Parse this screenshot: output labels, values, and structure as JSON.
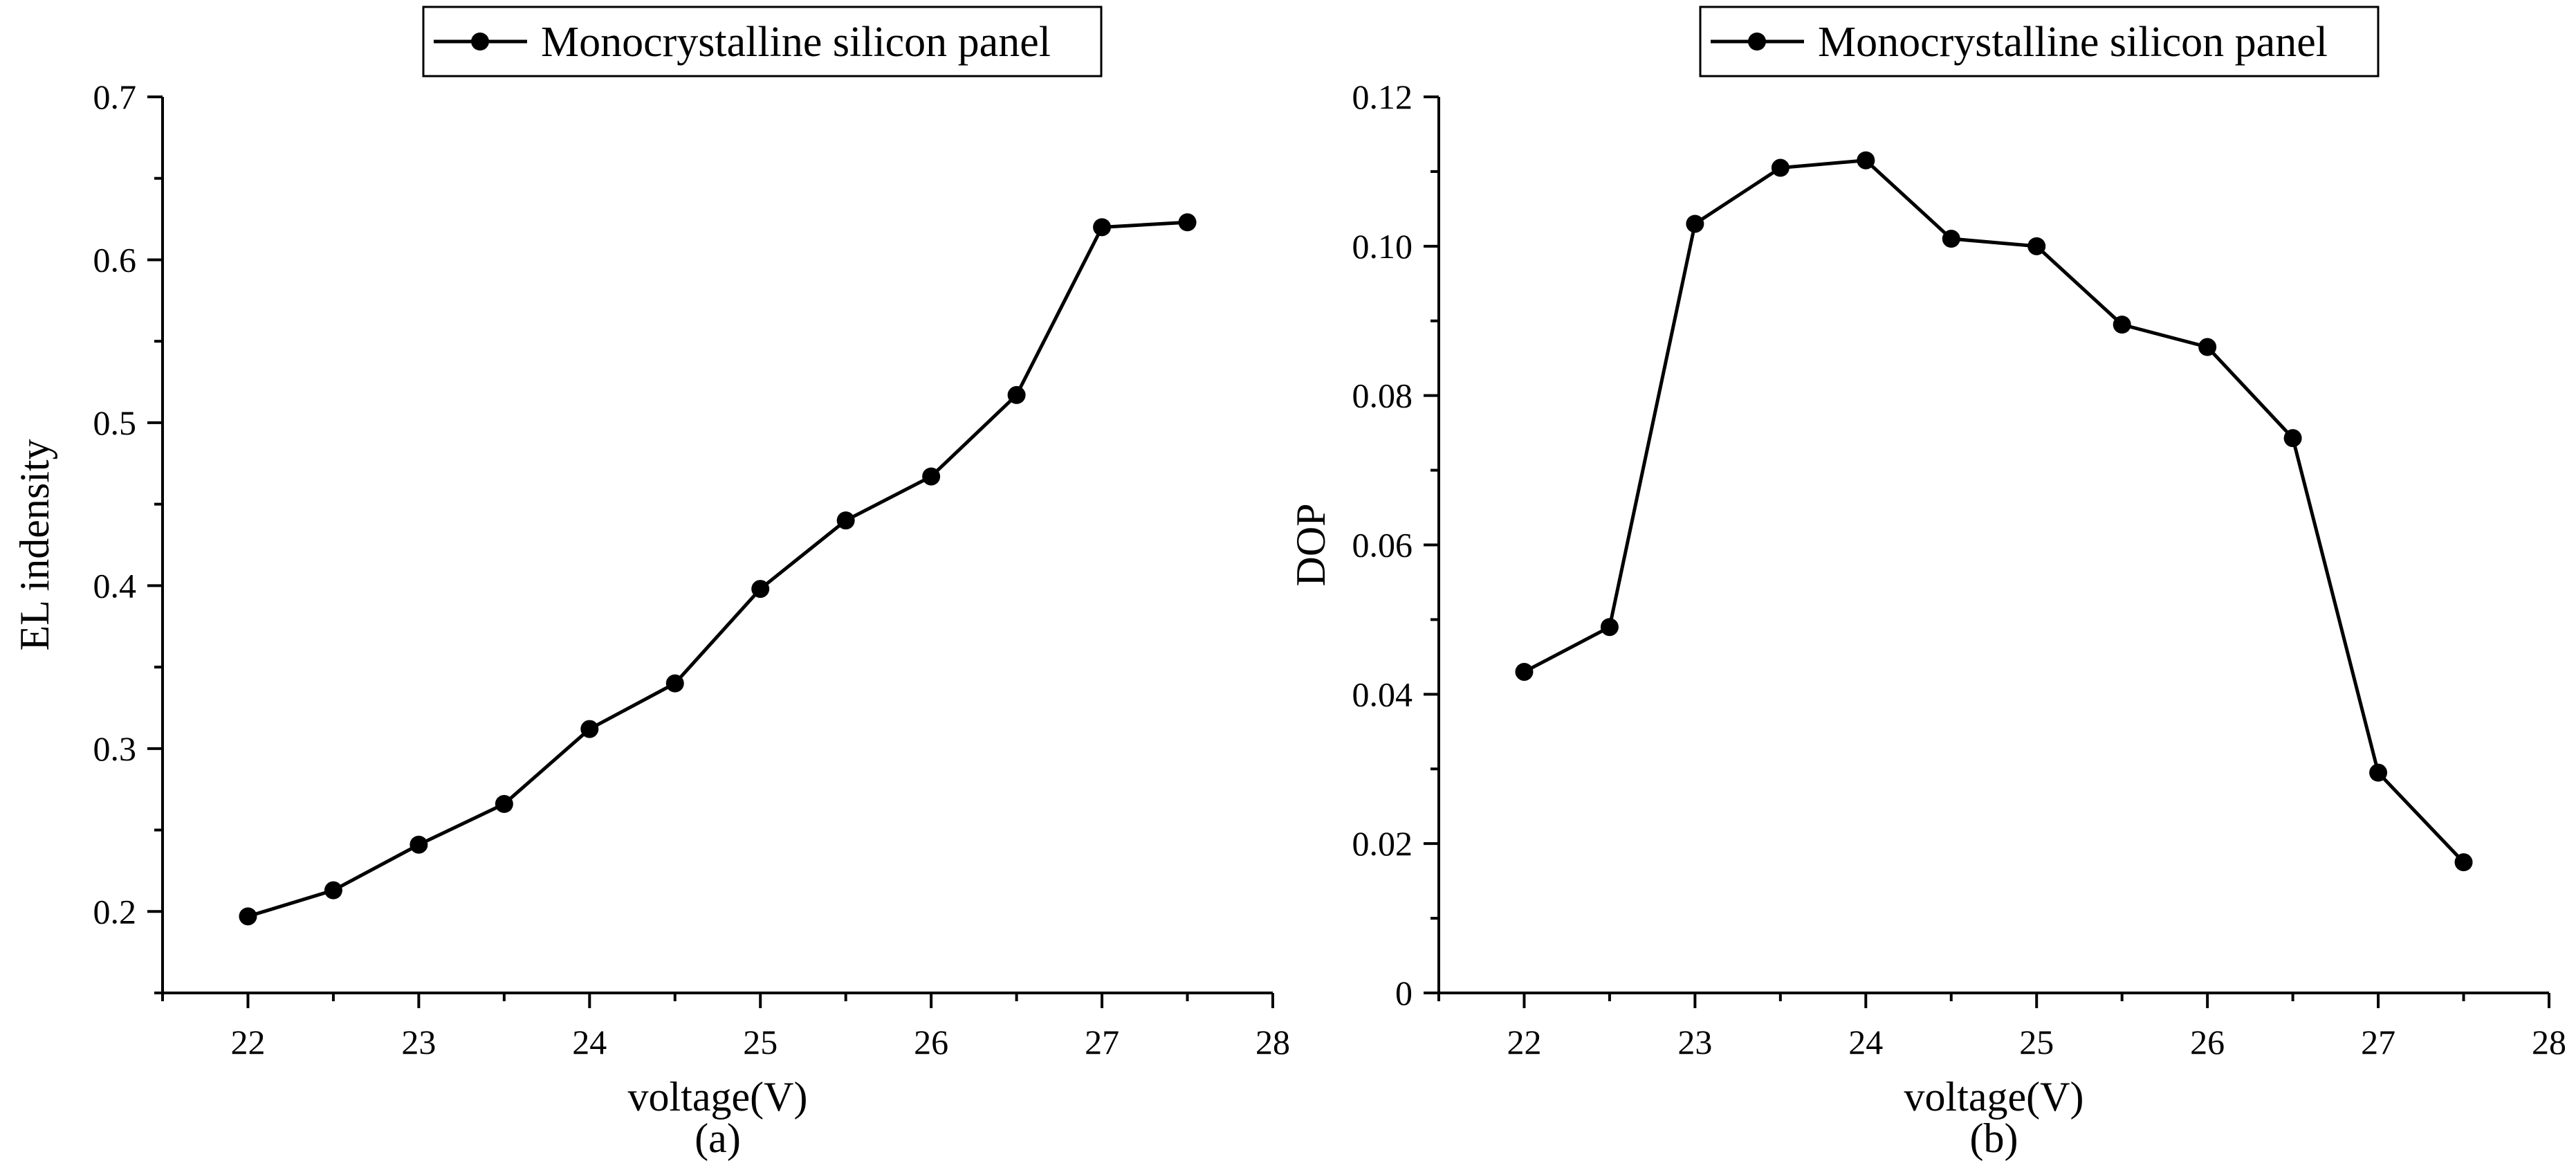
{
  "chart_data": [
    {
      "type": "line",
      "caption": "(a)",
      "xlabel": "voltage(V)",
      "ylabel": "EL indensity",
      "xlim": [
        21.5,
        28
      ],
      "ylim": [
        0.15,
        0.7
      ],
      "x_ticks": [
        22,
        23,
        24,
        25,
        26,
        27,
        28
      ],
      "y_ticks": [
        0.2,
        0.3,
        0.4,
        0.5,
        0.6,
        0.7
      ],
      "x_tick_labels": [
        "22",
        "23",
        "24",
        "25",
        "26",
        "27",
        "28"
      ],
      "y_tick_labels": [
        "0.2",
        "0.3",
        "0.4",
        "0.5",
        "0.6",
        "0.7"
      ],
      "legend_position": "top-center",
      "series": [
        {
          "name": "Monocrystalline silicon panel",
          "x": [
            22,
            22.5,
            23,
            23.5,
            24,
            24.5,
            25,
            25.5,
            26,
            26.5,
            27,
            27.5
          ],
          "values": [
            0.197,
            0.213,
            0.241,
            0.266,
            0.312,
            0.34,
            0.398,
            0.44,
            0.467,
            0.517,
            0.62,
            0.623
          ]
        }
      ]
    },
    {
      "type": "line",
      "caption": "(b)",
      "xlabel": "voltage(V)",
      "ylabel": "DOP",
      "xlim": [
        21.5,
        28
      ],
      "ylim": [
        0,
        0.12
      ],
      "x_ticks": [
        22,
        23,
        24,
        25,
        26,
        27,
        28
      ],
      "y_ticks": [
        0,
        0.02,
        0.04,
        0.06,
        0.08,
        0.1,
        0.12
      ],
      "x_tick_labels": [
        "22",
        "23",
        "24",
        "25",
        "26",
        "27",
        "28"
      ],
      "y_tick_labels": [
        "0",
        "0.02",
        "0.04",
        "0.06",
        "0.08",
        "0.10",
        "0.12"
      ],
      "legend_position": "top-center",
      "series": [
        {
          "name": "Monocrystalline silicon panel",
          "x": [
            22,
            22.5,
            23,
            23.5,
            24,
            24.5,
            25,
            25.5,
            26,
            26.5,
            27,
            27.5
          ],
          "values": [
            0.043,
            0.049,
            0.103,
            0.1105,
            0.1115,
            0.101,
            0.1,
            0.0895,
            0.0865,
            0.0743,
            0.0295,
            0.0175
          ]
        }
      ]
    }
  ]
}
